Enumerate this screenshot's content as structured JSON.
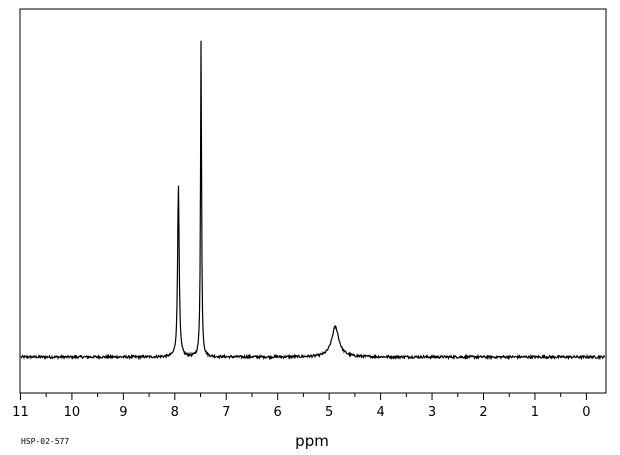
{
  "chart_data": {
    "type": "line",
    "title": "",
    "xlabel": "ppm",
    "ylabel": "",
    "xlim": [
      11.1,
      -0.35
    ],
    "ylim": [
      -0.12,
      1.05
    ],
    "x_reversed": true,
    "grid": false,
    "legend": "none",
    "x_ticks": [
      "11",
      "10",
      "9",
      "8",
      "7",
      "6",
      "5",
      "4",
      "3",
      "2",
      "1",
      "0"
    ],
    "baseline": 0.0,
    "peaks": [
      {
        "ppm": 7.93,
        "height": 0.55
      },
      {
        "ppm": 7.49,
        "height": 1.0
      },
      {
        "ppm": 4.88,
        "height": 0.095
      }
    ],
    "code_label": "HSP-02-577"
  }
}
